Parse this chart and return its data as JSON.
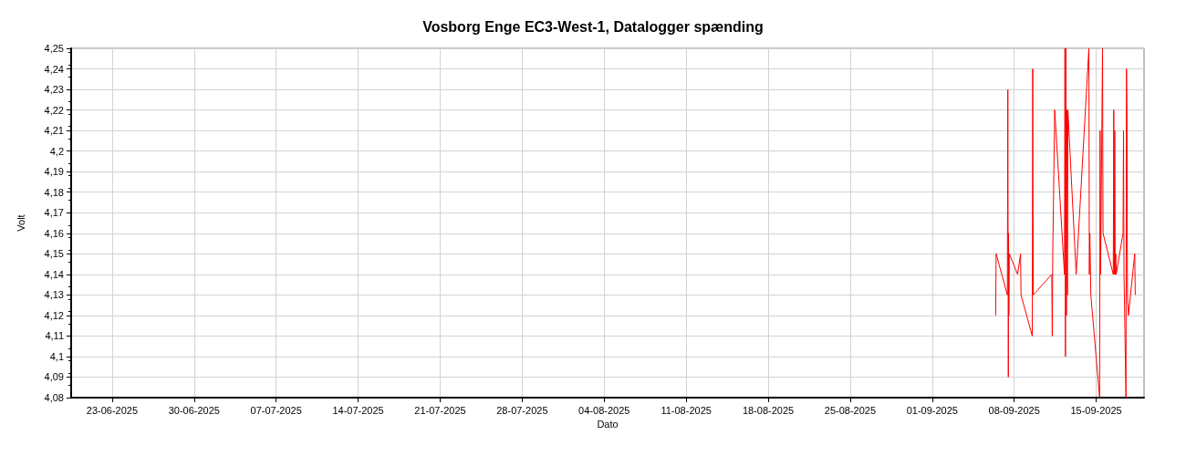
{
  "chart_data": {
    "type": "line",
    "title": "Vosborg Enge EC3-West-1, Datalogger spænding",
    "xlabel": "Dato",
    "ylabel": "Volt",
    "series": [
      {
        "color": "#ff0000",
        "x": [
          "2025-09-06T10:00",
          "2025-09-06T11:00",
          "2025-09-07T10:00",
          "2025-09-07T11:00",
          "2025-09-07T12:00",
          "2025-09-07T12:30",
          "2025-09-07T13:00",
          "2025-09-07T14:00",
          "2025-09-08T07:00",
          "2025-09-08T13:00",
          "2025-09-08T14:00",
          "2025-09-09T13:00",
          "2025-09-09T14:00",
          "2025-09-09T15:00",
          "2025-09-11T05:00",
          "2025-09-11T06:00",
          "2025-09-11T07:00",
          "2025-09-11T11:00",
          "2025-09-12T07:00",
          "2025-09-12T08:00",
          "2025-09-12T09:00",
          "2025-09-12T10:00",
          "2025-09-12T11:00",
          "2025-09-12T12:00",
          "2025-09-12T13:00",
          "2025-09-12T14:00",
          "2025-09-13T07:00",
          "2025-09-14T09:00",
          "2025-09-14T10:00",
          "2025-09-14T11:00",
          "2025-09-14T13:00",
          "2025-09-15T07:00",
          "2025-09-15T08:00",
          "2025-09-15T09:00",
          "2025-09-15T13:00",
          "2025-09-15T14:00",
          "2025-09-16T11:00",
          "2025-09-16T12:00",
          "2025-09-16T13:00",
          "2025-09-16T14:00",
          "2025-09-16T15:00",
          "2025-09-16T16:00",
          "2025-09-16T17:00",
          "2025-09-17T07:00",
          "2025-09-17T08:00",
          "2025-09-17T09:00",
          "2025-09-17T13:00",
          "2025-09-17T14:00",
          "2025-09-17T15:00",
          "2025-09-17T16:00",
          "2025-09-17T18:00",
          "2025-09-18T07:00",
          "2025-09-18T08:00"
        ],
        "values": [
          4.12,
          4.15,
          4.13,
          4.23,
          4.09,
          4.16,
          4.12,
          4.15,
          4.14,
          4.15,
          4.13,
          4.11,
          4.24,
          4.13,
          4.14,
          4.11,
          4.15,
          4.22,
          4.14,
          4.25,
          4.1,
          4.25,
          4.12,
          4.22,
          4.13,
          4.22,
          4.14,
          4.25,
          4.14,
          4.16,
          4.13,
          4.08,
          4.21,
          4.14,
          4.25,
          4.16,
          4.14,
          4.22,
          4.14,
          4.21,
          4.14,
          4.15,
          4.14,
          4.16,
          4.21,
          4.14,
          4.08,
          4.24,
          4.22,
          4.13,
          4.12,
          4.15,
          4.13
        ]
      }
    ],
    "xlim": [
      "2025-06-19T12:00",
      "2025-09-19T02:00"
    ],
    "xticks": [
      {
        "value": "2025-06-23",
        "label": "23-06-2025"
      },
      {
        "value": "2025-06-30",
        "label": "30-06-2025"
      },
      {
        "value": "2025-07-07",
        "label": "07-07-2025"
      },
      {
        "value": "2025-07-14",
        "label": "14-07-2025"
      },
      {
        "value": "2025-07-21",
        "label": "21-07-2025"
      },
      {
        "value": "2025-07-28",
        "label": "28-07-2025"
      },
      {
        "value": "2025-08-04",
        "label": "04-08-2025"
      },
      {
        "value": "2025-08-11",
        "label": "11-08-2025"
      },
      {
        "value": "2025-08-18",
        "label": "18-08-2025"
      },
      {
        "value": "2025-08-25",
        "label": "25-08-2025"
      },
      {
        "value": "2025-09-01",
        "label": "01-09-2025"
      },
      {
        "value": "2025-09-08",
        "label": "08-09-2025"
      },
      {
        "value": "2025-09-15",
        "label": "15-09-2025"
      }
    ],
    "ylim": [
      4.08,
      4.25
    ],
    "yticks": [
      {
        "value": 4.08,
        "label": "4,08"
      },
      {
        "value": 4.09,
        "label": "4,09"
      },
      {
        "value": 4.1,
        "label": "4,1"
      },
      {
        "value": 4.11,
        "label": "4,11"
      },
      {
        "value": 4.12,
        "label": "4,12"
      },
      {
        "value": 4.13,
        "label": "4,13"
      },
      {
        "value": 4.14,
        "label": "4,14"
      },
      {
        "value": 4.15,
        "label": "4,15"
      },
      {
        "value": 4.16,
        "label": "4,16"
      },
      {
        "value": 4.17,
        "label": "4,17"
      },
      {
        "value": 4.18,
        "label": "4,18"
      },
      {
        "value": 4.19,
        "label": "4,19"
      },
      {
        "value": 4.2,
        "label": "4,2"
      },
      {
        "value": 4.21,
        "label": "4,21"
      },
      {
        "value": 4.22,
        "label": "4,22"
      },
      {
        "value": 4.23,
        "label": "4,23"
      },
      {
        "value": 4.24,
        "label": "4,24"
      },
      {
        "value": 4.25,
        "label": "4,25"
      }
    ],
    "grid": true,
    "marker": "none",
    "line_style": "solid"
  }
}
